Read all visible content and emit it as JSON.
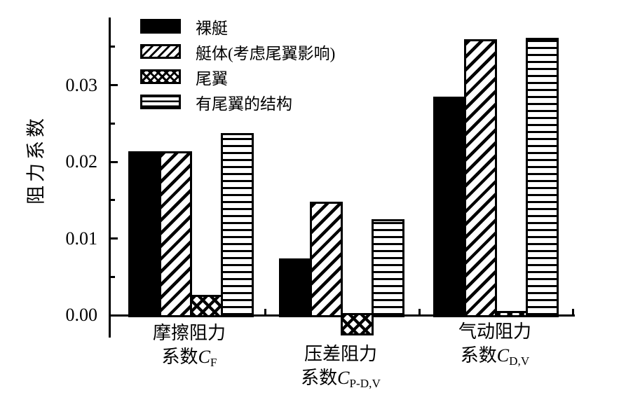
{
  "chart_data": {
    "type": "bar",
    "title": "",
    "xlabel": "",
    "ylabel": "阻力系数",
    "grid": false,
    "legend_position": "top-left-inside",
    "ylim": [
      -0.003,
      0.0388
    ],
    "yticks": [
      0,
      0.01,
      0.02,
      0.03
    ],
    "ytick_labels": [
      "0.00",
      "0.01",
      "0.02",
      "0.03"
    ],
    "minor_yticks": [
      0.005,
      0.015,
      0.025,
      0.035
    ],
    "categories": [
      {
        "line1": "摩擦阻力",
        "line2_prefix": "系数",
        "symbol": "C",
        "subscript": "F"
      },
      {
        "line1": "压差阻力",
        "line2_prefix": "系数",
        "symbol": "C",
        "subscript": "P-D,V"
      },
      {
        "line1": "气动阻力",
        "line2_prefix": "系数",
        "symbol": "C",
        "subscript": "D,V"
      }
    ],
    "series": [
      {
        "name": "裸艇",
        "pattern": "solid",
        "values": [
          0.0211,
          0.0071,
          0.0282
        ]
      },
      {
        "name": "艇体(考虑尾翼影响)",
        "pattern": "diagonal",
        "values": [
          0.0211,
          0.0145,
          0.0357
        ]
      },
      {
        "name": "尾翼",
        "pattern": "crosshatch",
        "values": [
          0.0024,
          -0.0024,
          0.0003
        ]
      },
      {
        "name": "有尾翼的结构",
        "pattern": "horizontal",
        "values": [
          0.0235,
          0.0122,
          0.0359
        ]
      }
    ],
    "colors": {
      "ink": "#000000",
      "background": "#ffffff"
    }
  }
}
